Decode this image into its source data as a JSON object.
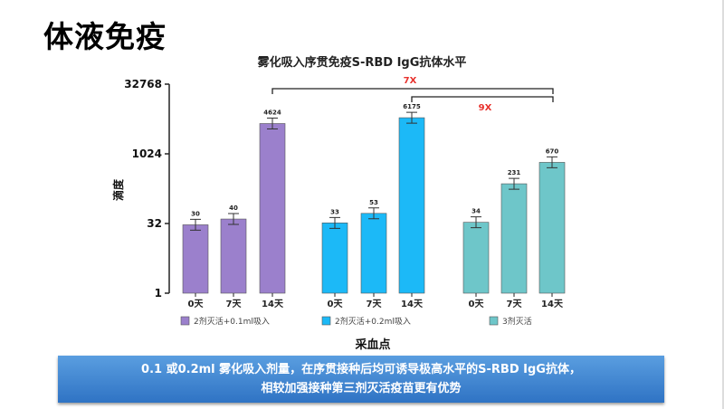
{
  "page_title": "体液免疫",
  "banner": {
    "line1": "0.1 或0.2ml 雾化吸入剂量，在序贯接种后均可诱导极高水平的S-RBD IgG抗体，",
    "line2": "相较加强接种第三剂灭活疫苗更有优势"
  },
  "chart_data": {
    "type": "bar",
    "title": "雾化吸入序贯免疫S-RBD IgG抗体水平",
    "xlabel": "采血点",
    "ylabel": "滴度",
    "yscale": "log2",
    "ylim": [
      1,
      32768
    ],
    "yticks": [
      "1",
      "32",
      "1024",
      "32768"
    ],
    "categories": [
      "0天",
      "7天",
      "14天"
    ],
    "series": [
      {
        "name": "2剂灭活+0.1ml吸入",
        "color": "#9b80cc",
        "values": [
          30,
          40,
          4624
        ]
      },
      {
        "name": "2剂灭活+0.2ml吸入",
        "color": "#1cb9f7",
        "values": [
          33,
          53,
          6175
        ]
      },
      {
        "name": "3剂灭活",
        "color": "#6ec6c9",
        "values": [
          34,
          231,
          670
        ]
      }
    ],
    "annotations": [
      {
        "text": "7X",
        "from": "2剂灭活+0.1ml吸入 14天",
        "to": "3剂灭活 14天",
        "color": "#e8322d"
      },
      {
        "text": "9X",
        "from": "2剂灭活+0.2ml吸入 14天",
        "to": "3剂灭活 14天",
        "color": "#e8322d"
      }
    ]
  }
}
